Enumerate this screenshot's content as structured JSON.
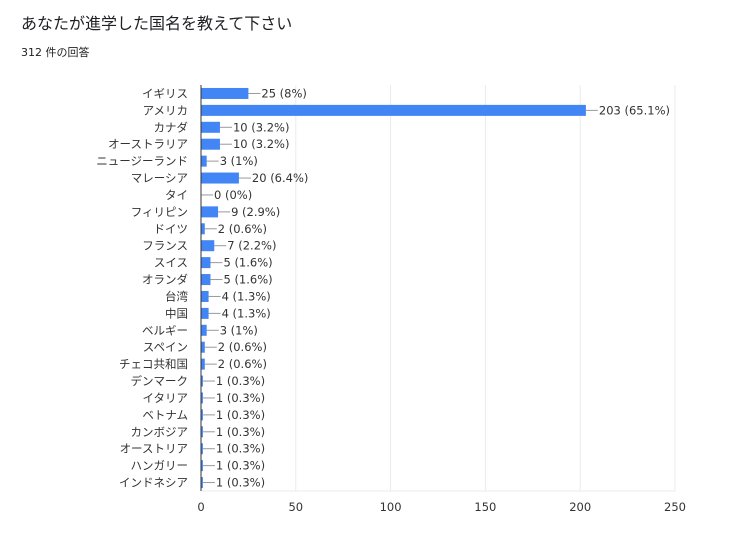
{
  "title": "あなたが進学した国名を教えて下さい",
  "subtitle": "312 件の回答",
  "chart_data": {
    "type": "bar",
    "orientation": "horizontal",
    "categories": [
      "イギリス",
      "アメリカ",
      "カナダ",
      "オーストラリア",
      "ニュージーランド",
      "マレーシア",
      "タイ",
      "フィリピン",
      "ドイツ",
      "フランス",
      "スイス",
      "オランダ",
      "台湾",
      "中国",
      "ベルギー",
      "スペイン",
      "チェコ共和国",
      "デンマーク",
      "イタリア",
      "ベトナム",
      "カンボジア",
      "オーストリア",
      "ハンガリー",
      "インドネシア"
    ],
    "values": [
      25,
      203,
      10,
      10,
      3,
      20,
      0,
      9,
      2,
      7,
      5,
      5,
      4,
      4,
      3,
      2,
      2,
      1,
      1,
      1,
      1,
      1,
      1,
      1
    ],
    "data_labels": [
      "25 (8%)",
      "203 (65.1%)",
      "10 (3.2%)",
      "10 (3.2%)",
      "3 (1%)",
      "20 (6.4%)",
      "0 (0%)",
      "9 (2.9%)",
      "2 (0.6%)",
      "7 (2.2%)",
      "5 (1.6%)",
      "5 (1.6%)",
      "4 (1.3%)",
      "4 (1.3%)",
      "3 (1%)",
      "2 (0.6%)",
      "2 (0.6%)",
      "1 (0.3%)",
      "1 (0.3%)",
      "1 (0.3%)",
      "1 (0.3%)",
      "1 (0.3%)",
      "1 (0.3%)",
      "1 (0.3%)"
    ],
    "xlim": [
      0,
      250
    ],
    "xticks": [
      "0",
      "50",
      "100",
      "150",
      "200",
      "250"
    ],
    "grid": true,
    "bar_color": "#4285f4"
  }
}
